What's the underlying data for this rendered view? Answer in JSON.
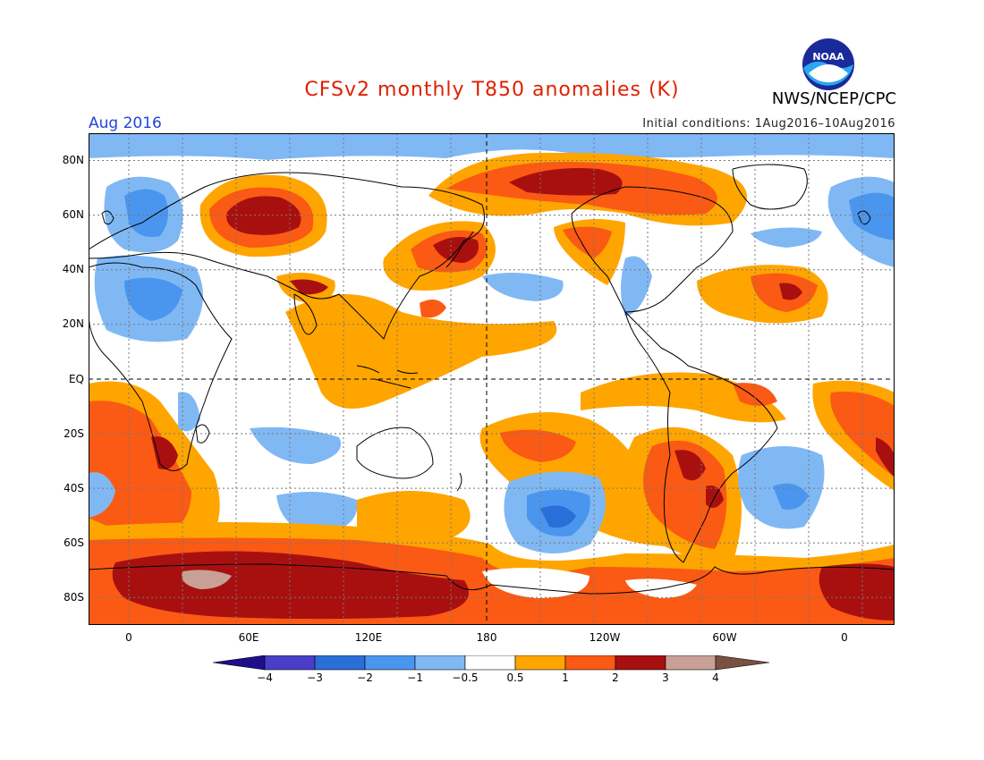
{
  "title": "CFSv2 monthly T850 anomalies (K)",
  "organization": "NWS/NCEP/CPC",
  "period_label": "Aug 2016",
  "initial_conditions": "Initial conditions: 1Aug2016–10Aug2016",
  "logo_text": "NOAA",
  "colors": {
    "title": "#dd2200",
    "period": "#2244dd",
    "neg4": "#1e0e8c",
    "neg3": "#4a3ec8",
    "neg2": "#2a6ed8",
    "neg1": "#4a96ee",
    "neg05": "#80b8f4",
    "neutral": "#ffffff",
    "pos05": "#ffa500",
    "pos1": "#fa5a14",
    "pos2": "#e02810",
    "pos3": "#a81010",
    "pos4": "#c8a098",
    "pos_max": "#7a5040"
  },
  "map": {
    "lat_labels": [
      "80N",
      "60N",
      "40N",
      "20N",
      "EQ",
      "20S",
      "40S",
      "60S",
      "80S"
    ],
    "lon_labels": [
      "0",
      "60E",
      "120E",
      "180",
      "120W",
      "60W",
      "0"
    ]
  },
  "colorbar": {
    "labels": [
      "−4",
      "−3",
      "−2",
      "−1",
      "−0.5",
      "0.5",
      "1",
      "2",
      "3",
      "4"
    ]
  }
}
